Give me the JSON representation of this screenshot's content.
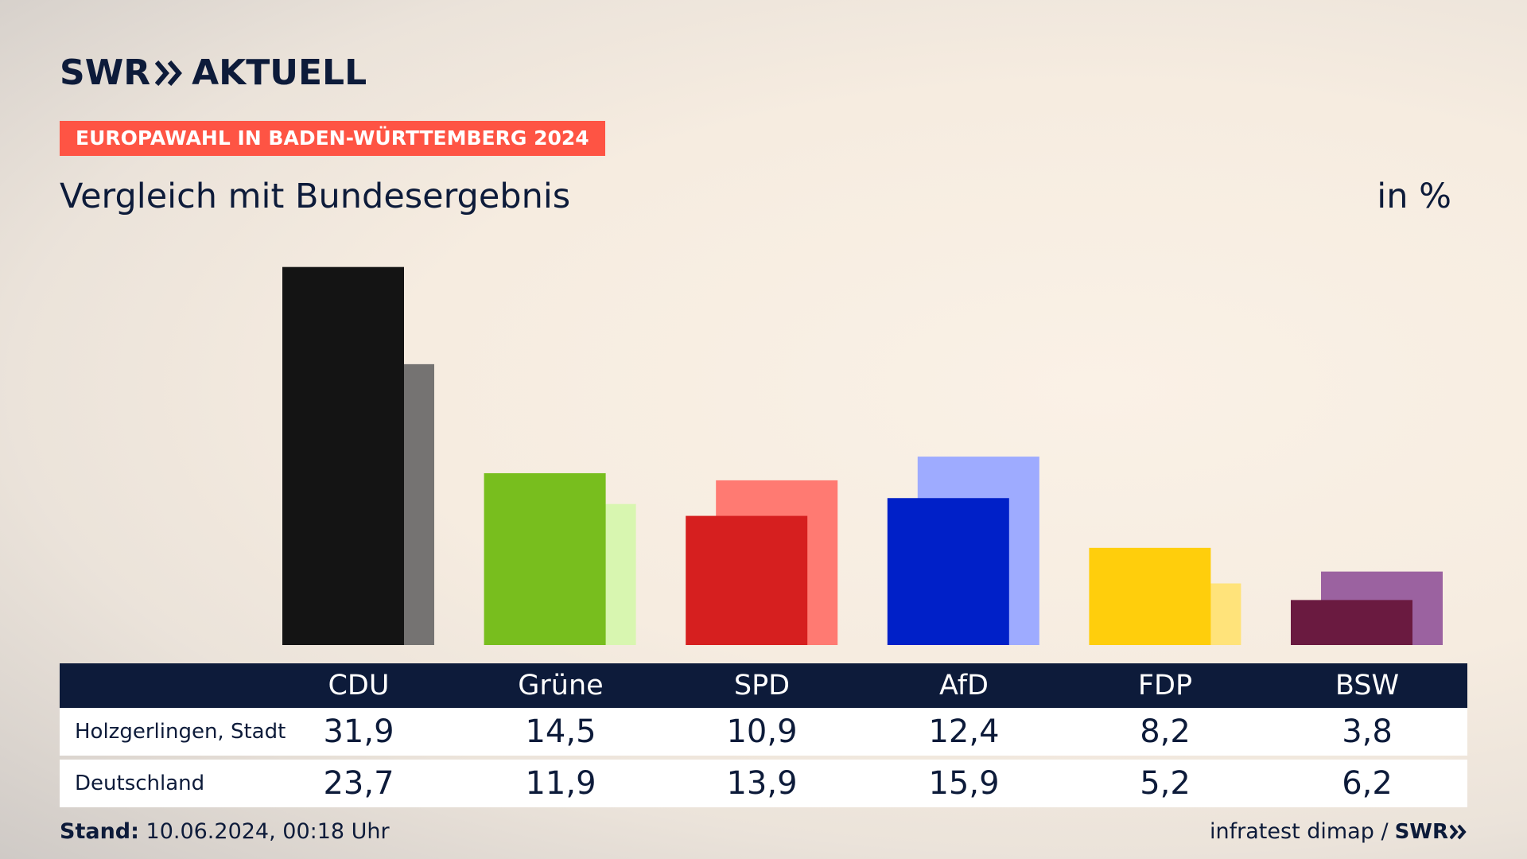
{
  "brand": {
    "logo_left": "SWR",
    "logo_right": "AKTUELL",
    "small_logo": "SWR"
  },
  "tag": "EUROPAWAHL IN BADEN-WÜRTTEMBERG 2024",
  "subtitle": "Vergleich mit Bundesergebnis",
  "unit": "in %",
  "table": {
    "headers": [
      "CDU",
      "Grüne",
      "SPD",
      "AfD",
      "FDP",
      "BSW"
    ],
    "rows": [
      {
        "label": "Holzgerlingen, Stadt",
        "values": [
          "31,9",
          "14,5",
          "10,9",
          "12,4",
          "8,2",
          "3,8"
        ]
      },
      {
        "label": "Deutschland",
        "values": [
          "23,7",
          "11,9",
          "13,9",
          "15,9",
          "5,2",
          "6,2"
        ]
      }
    ]
  },
  "footer": {
    "stand_label": "Stand:",
    "stand_value": "10.06.2024, 00:18 Uhr",
    "source": "infratest dimap /"
  },
  "chart_data": {
    "type": "bar",
    "categories": [
      "CDU",
      "Grüne",
      "SPD",
      "AfD",
      "FDP",
      "BSW"
    ],
    "series": [
      {
        "name": "Holzgerlingen, Stadt",
        "values": [
          31.9,
          14.5,
          10.9,
          12.4,
          8.2,
          3.8
        ]
      },
      {
        "name": "Deutschland",
        "values": [
          23.7,
          11.9,
          13.9,
          15.9,
          5.2,
          6.2
        ]
      }
    ],
    "colors": {
      "local": [
        "#141414",
        "#78be1e",
        "#d61f1f",
        "#0020c8",
        "#ffce0c",
        "#6a1a40"
      ],
      "national": [
        "#757372",
        "#d8f6b0",
        "#ff7a72",
        "#9eabff",
        "#ffe37a",
        "#9b62a0"
      ]
    },
    "grid": false,
    "legend": "none",
    "title": "Vergleich mit Bundesergebnis",
    "ylabel": "in %"
  }
}
